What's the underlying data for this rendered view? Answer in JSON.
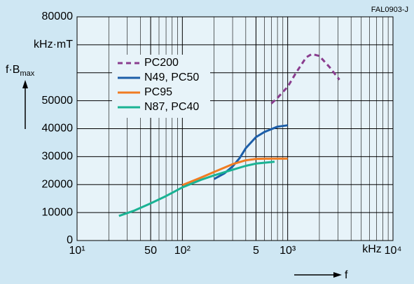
{
  "chart_data": {
    "type": "line",
    "annotation": "FAL0903-J",
    "y_label": {
      "text": "f·B",
      "sub": "max"
    },
    "x_label": "f",
    "x_unit": "kHz",
    "xscale": "log",
    "xlim": [
      10,
      10000
    ],
    "xticks": [
      {
        "value": 10,
        "label": "10¹"
      },
      50,
      {
        "value": 100,
        "label": "10²"
      },
      {
        "value": 500,
        "label": "5"
      },
      {
        "value": 1000,
        "label": "10³"
      },
      {
        "value": 10000,
        "label": "10⁴"
      }
    ],
    "ylim": [
      0,
      80000
    ],
    "yticks": [
      0,
      10000,
      20000,
      30000,
      40000,
      50000,
      {
        "value": 70000,
        "label": "kHz·mT"
      },
      80000
    ],
    "ygrid_extra": [
      60000
    ],
    "grid": true,
    "legend": "upper left",
    "series": [
      {
        "name": "PC200",
        "color": "#8a3d8f",
        "dash": true,
        "x": [
          700,
          800,
          1000,
          1200,
          1500,
          1700,
          2000,
          2500,
          3100
        ],
        "values": [
          49000,
          51000,
          55000,
          60000,
          65500,
          66700,
          66000,
          62000,
          57500
        ]
      },
      {
        "name": "N49, PC50",
        "color": "#1c5ea8",
        "x": [
          200,
          250,
          300,
          350,
          400,
          500,
          600,
          800,
          1000
        ],
        "values": [
          22000,
          24000,
          26500,
          29500,
          33000,
          37000,
          38800,
          40700,
          41200
        ]
      },
      {
        "name": "PC95",
        "color": "#f07c22",
        "x": [
          100,
          150,
          200,
          300,
          400,
          500,
          700,
          1000
        ],
        "values": [
          19800,
          22500,
          24500,
          27300,
          28700,
          29200,
          29300,
          29300
        ]
      },
      {
        "name": "N87, PC40",
        "color": "#1ab394",
        "x": [
          25,
          35,
          50,
          70,
          100,
          150,
          200,
          300,
          400,
          500,
          750
        ],
        "values": [
          8800,
          10700,
          13300,
          15900,
          19000,
          21700,
          23300,
          25300,
          26700,
          27500,
          28200
        ]
      }
    ]
  }
}
